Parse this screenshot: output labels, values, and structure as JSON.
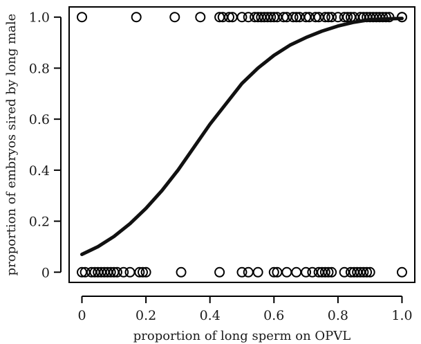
{
  "chart_data": {
    "type": "scatter",
    "title": "",
    "xlabel": "proportion of long sperm on OPVL",
    "ylabel": "proportion of embryos sired by long male",
    "xlim": [
      -0.04,
      1.04
    ],
    "ylim": [
      -0.04,
      1.04
    ],
    "xticks": [
      0,
      0.2,
      0.4,
      0.6,
      0.8,
      1.0
    ],
    "xtick_labels": [
      "0",
      "0.2",
      "0.4",
      "0.6",
      "0.8",
      "1.0"
    ],
    "yticks": [
      0,
      0.2,
      0.4,
      0.6,
      0.8,
      1.0
    ],
    "ytick_labels": [
      "0",
      "0.2",
      "0.4",
      "0.6",
      "0.8",
      "1.0"
    ],
    "grid": false,
    "legend": "none",
    "marker": "open-circle",
    "series": [
      {
        "kind": "points",
        "x": [
          0,
          0.17,
          0.29,
          0.37,
          0.43,
          0.44,
          0.46,
          0.47,
          0.5,
          0.52,
          0.54,
          0.55,
          0.56,
          0.57,
          0.58,
          0.59,
          0.6,
          0.61,
          0.63,
          0.64,
          0.66,
          0.67,
          0.68,
          0.7,
          0.71,
          0.73,
          0.74,
          0.76,
          0.77,
          0.78,
          0.8,
          0.82,
          0.83,
          0.84,
          0.85,
          0.87,
          0.88,
          0.89,
          0.9,
          0.91,
          0.92,
          0.93,
          0.94,
          0.95,
          0.96,
          1.0,
          1.0
        ],
        "y": [
          1,
          1,
          1,
          1,
          1,
          1,
          1,
          1,
          1,
          1,
          1,
          1,
          1,
          1,
          1,
          1,
          1,
          1,
          1,
          1,
          1,
          1,
          1,
          1,
          1,
          1,
          1,
          1,
          1,
          1,
          1,
          1,
          1,
          1,
          1,
          1,
          1,
          1,
          1,
          1,
          1,
          1,
          1,
          1,
          1,
          1,
          1
        ]
      },
      {
        "kind": "points",
        "x": [
          0,
          0.01,
          0.03,
          0.04,
          0.05,
          0.06,
          0.07,
          0.08,
          0.09,
          0.1,
          0.11,
          0.13,
          0.15,
          0.18,
          0.19,
          0.2,
          0.31,
          0.43,
          0.5,
          0.52,
          0.55,
          0.6,
          0.61,
          0.64,
          0.67,
          0.7,
          0.72,
          0.74,
          0.75,
          0.76,
          0.77,
          0.78,
          0.82,
          0.84,
          0.85,
          0.86,
          0.87,
          0.88,
          0.89,
          0.9,
          1.0
        ],
        "y": [
          0,
          0,
          0,
          0,
          0,
          0,
          0,
          0,
          0,
          0,
          0,
          0,
          0,
          0,
          0,
          0,
          0,
          0,
          0,
          0,
          0,
          0,
          0,
          0,
          0,
          0,
          0,
          0,
          0,
          0,
          0,
          0,
          0,
          0,
          0,
          0,
          0,
          0,
          0,
          0,
          0
        ]
      },
      {
        "kind": "curve",
        "x": [
          0,
          0.05,
          0.1,
          0.15,
          0.2,
          0.25,
          0.3,
          0.35,
          0.4,
          0.45,
          0.5,
          0.55,
          0.6,
          0.65,
          0.7,
          0.75,
          0.8,
          0.85,
          0.9,
          0.95,
          1.0
        ],
        "y": [
          0.07,
          0.1,
          0.14,
          0.19,
          0.25,
          0.32,
          0.4,
          0.49,
          0.58,
          0.66,
          0.74,
          0.8,
          0.85,
          0.89,
          0.92,
          0.945,
          0.965,
          0.98,
          0.99,
          0.993,
          0.995
        ]
      }
    ]
  }
}
